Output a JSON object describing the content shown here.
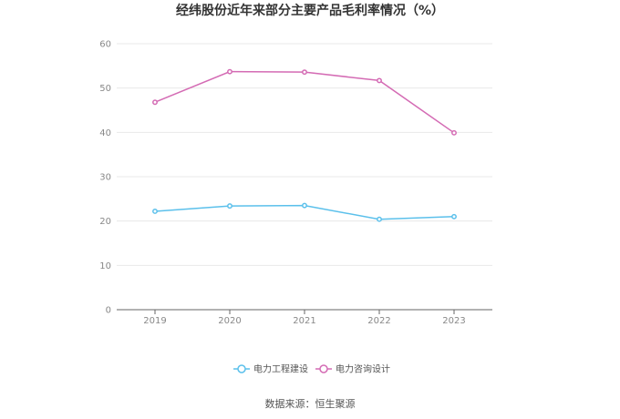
{
  "chart_data": {
    "type": "line",
    "title": "经纬股份近年来部分主要产品毛利率情况（%）",
    "categories": [
      "2019",
      "2020",
      "2021",
      "2022",
      "2023"
    ],
    "series": [
      {
        "name": "电力工程建设",
        "color": "#5bc0eb",
        "values": [
          22.2,
          23.4,
          23.5,
          20.4,
          21.0
        ]
      },
      {
        "name": "电力咨询设计",
        "color": "#d46bb4",
        "values": [
          46.8,
          53.7,
          53.6,
          51.7,
          39.9
        ]
      }
    ],
    "ylim": [
      0,
      60
    ],
    "yticks": [
      0,
      10,
      20,
      30,
      40,
      50,
      60
    ],
    "grid": true,
    "legend_position": "bottom"
  },
  "source_text": "数据来源：恒生聚源"
}
